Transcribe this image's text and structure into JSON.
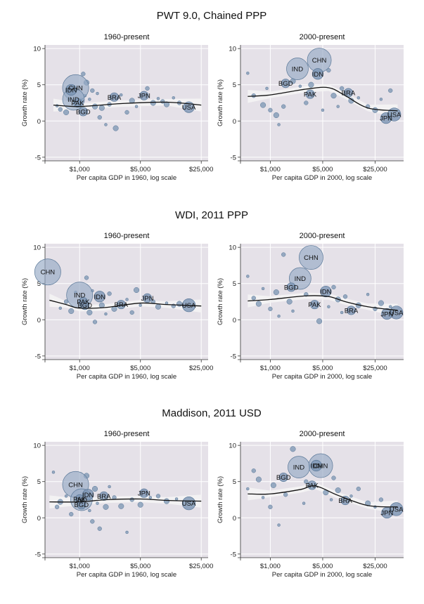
{
  "figure": {
    "row_titles": [
      "PWT 9.0, Chained PPP",
      "WDI, 2011 PPP",
      "Maddison, 2011 USD"
    ],
    "colors": {
      "plot_bg": "#e5e1e8",
      "grid": "#ffffff",
      "bubble_fill": "#7a94b3",
      "bubble_stroke": "#5a7898",
      "big_bubble_fill": "#95a9c4",
      "fit_line": "#111111",
      "ci_band": "#f4f4f4"
    }
  },
  "chart_data": [
    {
      "type": "scatter",
      "title": "1960-present",
      "group": "PWT 9.0, Chained PPP",
      "xlabel": "Per capita GDP in 1960, log scale",
      "ylabel": "Growth rate (%)",
      "x_scale": "log",
      "xlim": [
        400,
        30000
      ],
      "ylim": [
        -5.5,
        10.5
      ],
      "xticks": [
        1000,
        5000,
        25000
      ],
      "xtick_labels": [
        "$1,000",
        "$5,000",
        "$25,000"
      ],
      "yticks": [
        -5,
        0,
        5,
        10
      ],
      "ytick_labels": [
        "-5",
        "0",
        "5",
        "10"
      ],
      "labeled_points": [
        {
          "label": "CHN",
          "x": 900,
          "y": 4.6,
          "size": 12
        },
        {
          "label": "IND",
          "x": 850,
          "y": 3.0,
          "size": 10
        },
        {
          "label": "IDN",
          "x": 800,
          "y": 4.3,
          "size": 5
        },
        {
          "label": "PAK",
          "x": 950,
          "y": 2.5,
          "size": 4
        },
        {
          "label": "BGD",
          "x": 1100,
          "y": 1.3,
          "size": 4
        },
        {
          "label": "BRA",
          "x": 2500,
          "y": 3.3,
          "size": 4
        },
        {
          "label": "JPN",
          "x": 5500,
          "y": 3.5,
          "size": 4
        },
        {
          "label": "USA",
          "x": 18000,
          "y": 1.9,
          "size": 5
        }
      ],
      "other_points": [
        [
          550,
          2.1
        ],
        [
          600,
          1.6
        ],
        [
          700,
          1.2
        ],
        [
          750,
          3.0
        ],
        [
          1100,
          6.5
        ],
        [
          1200,
          5.3
        ],
        [
          1300,
          3.0
        ],
        [
          1400,
          4.2
        ],
        [
          1500,
          2.0
        ],
        [
          1600,
          3.8
        ],
        [
          1700,
          0.5
        ],
        [
          1800,
          1.8
        ],
        [
          2000,
          -0.5
        ],
        [
          2200,
          2.3
        ],
        [
          2600,
          -1.0
        ],
        [
          3000,
          3.6
        ],
        [
          3500,
          1.2
        ],
        [
          4000,
          2.8
        ],
        [
          4500,
          2.0
        ],
        [
          6000,
          4.5
        ],
        [
          7000,
          2.5
        ],
        [
          8000,
          3.1
        ],
        [
          9000,
          2.7
        ],
        [
          10000,
          2.3
        ],
        [
          12000,
          3.2
        ],
        [
          14000,
          2.5
        ],
        [
          1050,
          2.8
        ],
        [
          1150,
          3.5
        ]
      ],
      "fit": {
        "x": [
          500,
          1000,
          3000,
          10000,
          25000
        ],
        "y": [
          2.2,
          2.0,
          2.4,
          2.6,
          2.2
        ]
      }
    },
    {
      "type": "scatter",
      "title": "2000-present",
      "group": "PWT 9.0, Chained PPP",
      "xlabel": "Per capita GDP in 2000, log scale",
      "ylabel": "Growth rate (%)",
      "x_scale": "log",
      "xlim": [
        400,
        60000
      ],
      "ylim": [
        -5.5,
        10.5
      ],
      "xticks": [
        1000,
        5000,
        25000
      ],
      "xtick_labels": [
        "$1,000",
        "$5,000",
        "$25,000"
      ],
      "yticks": [
        -5,
        0,
        5,
        10
      ],
      "ytick_labels": [
        "-5",
        "0",
        "5",
        "10"
      ],
      "labeled_points": [
        {
          "label": "CHN",
          "x": 4500,
          "y": 8.4,
          "size": 11
        },
        {
          "label": "IND",
          "x": 2300,
          "y": 7.2,
          "size": 10
        },
        {
          "label": "IDN",
          "x": 4300,
          "y": 6.5,
          "size": 5
        },
        {
          "label": "BGD",
          "x": 1600,
          "y": 5.2,
          "size": 4
        },
        {
          "label": "PAK",
          "x": 3400,
          "y": 3.7,
          "size": 4
        },
        {
          "label": "BRA",
          "x": 11000,
          "y": 3.9,
          "size": 4
        },
        {
          "label": "JPN",
          "x": 35000,
          "y": 0.4,
          "size": 5
        },
        {
          "label": "USA",
          "x": 45000,
          "y": 0.9,
          "size": 6
        }
      ],
      "other_points": [
        [
          500,
          6.6
        ],
        [
          600,
          3.5
        ],
        [
          800,
          2.2
        ],
        [
          900,
          4.5
        ],
        [
          1000,
          1.5
        ],
        [
          1200,
          0.8
        ],
        [
          1300,
          -0.5
        ],
        [
          1500,
          2.0
        ],
        [
          2000,
          5.5
        ],
        [
          2500,
          4.8
        ],
        [
          3000,
          2.5
        ],
        [
          3500,
          5.0
        ],
        [
          5000,
          1.5
        ],
        [
          6000,
          7.0
        ],
        [
          7000,
          3.5
        ],
        [
          8000,
          2.0
        ],
        [
          9000,
          4.5
        ],
        [
          12000,
          2.8
        ],
        [
          15000,
          3.2
        ],
        [
          20000,
          2.0
        ],
        [
          25000,
          1.5
        ],
        [
          30000,
          3.0
        ],
        [
          40000,
          4.2
        ]
      ],
      "fit": {
        "x": [
          500,
          1000,
          3000,
          6000,
          10000,
          20000,
          50000
        ],
        "y": [
          3.4,
          3.6,
          4.4,
          4.6,
          3.5,
          1.8,
          1.4
        ]
      }
    },
    {
      "type": "scatter",
      "title": "1960-present",
      "group": "WDI, 2011 PPP",
      "xlabel": "Per capita GDP in 1960, log scale",
      "ylabel": "Growth rate (%)",
      "x_scale": "log",
      "xlim": [
        400,
        30000
      ],
      "ylim": [
        -5.5,
        10.5
      ],
      "xticks": [
        1000,
        5000,
        25000
      ],
      "xtick_labels": [
        "$1,000",
        "$5,000",
        "$25,000"
      ],
      "yticks": [
        -5,
        0,
        5,
        10
      ],
      "ytick_labels": [
        "-5",
        "0",
        "5",
        "10"
      ],
      "labeled_points": [
        {
          "label": "CHN",
          "x": 430,
          "y": 6.6,
          "size": 12
        },
        {
          "label": "IND",
          "x": 1000,
          "y": 3.4,
          "size": 12
        },
        {
          "label": "IDN",
          "x": 1700,
          "y": 3.2,
          "size": 5
        },
        {
          "label": "PAK",
          "x": 1100,
          "y": 2.5,
          "size": 4
        },
        {
          "label": "BGD",
          "x": 1150,
          "y": 2.0,
          "size": 4
        },
        {
          "label": "BRA",
          "x": 3000,
          "y": 2.1,
          "size": 4
        },
        {
          "label": "JPN",
          "x": 6000,
          "y": 3.0,
          "size": 4
        },
        {
          "label": "USA",
          "x": 18000,
          "y": 2.0,
          "size": 6
        }
      ],
      "other_points": [
        [
          600,
          1.6
        ],
        [
          700,
          2.5
        ],
        [
          800,
          1.2
        ],
        [
          900,
          3.8
        ],
        [
          1200,
          5.8
        ],
        [
          1300,
          1.0
        ],
        [
          1400,
          4.0
        ],
        [
          1500,
          -0.3
        ],
        [
          1800,
          2.0
        ],
        [
          2000,
          0.8
        ],
        [
          2200,
          3.6
        ],
        [
          2500,
          1.5
        ],
        [
          3500,
          2.8
        ],
        [
          4000,
          1.0
        ],
        [
          4500,
          4.1
        ],
        [
          5000,
          2.0
        ],
        [
          7000,
          2.5
        ],
        [
          8000,
          1.8
        ],
        [
          10000,
          2.3
        ],
        [
          12000,
          1.9
        ],
        [
          14000,
          2.2
        ]
      ],
      "fit": {
        "x": [
          450,
          700,
          1000,
          2000,
          5000,
          10000,
          25000
        ],
        "y": [
          2.7,
          2.1,
          1.6,
          1.7,
          2.3,
          2.1,
          1.9
        ]
      }
    },
    {
      "type": "scatter",
      "title": "2000-present",
      "group": "WDI, 2011 PPP",
      "xlabel": "Per capita GDP in 2000, log scale",
      "ylabel": "Growth rate (%)",
      "x_scale": "log",
      "xlim": [
        400,
        60000
      ],
      "ylim": [
        -5.5,
        10.5
      ],
      "xticks": [
        1000,
        5000,
        25000
      ],
      "xtick_labels": [
        "$1,000",
        "$5,000",
        "$25,000"
      ],
      "yticks": [
        -5,
        0,
        5,
        10
      ],
      "ytick_labels": [
        "-5",
        "0",
        "5",
        "10"
      ],
      "labeled_points": [
        {
          "label": "CHN",
          "x": 3500,
          "y": 8.6,
          "size": 11
        },
        {
          "label": "IND",
          "x": 2500,
          "y": 5.7,
          "size": 10
        },
        {
          "label": "IDN",
          "x": 5500,
          "y": 3.9,
          "size": 5
        },
        {
          "label": "BGD",
          "x": 1900,
          "y": 4.5,
          "size": 4
        },
        {
          "label": "PAK",
          "x": 3900,
          "y": 2.1,
          "size": 4
        },
        {
          "label": "BRA",
          "x": 12000,
          "y": 1.3,
          "size": 4
        },
        {
          "label": "JPN",
          "x": 36000,
          "y": 0.8,
          "size": 5
        },
        {
          "label": "USA",
          "x": 48000,
          "y": 1.0,
          "size": 6
        }
      ],
      "other_points": [
        [
          500,
          6.0
        ],
        [
          600,
          3.0
        ],
        [
          700,
          2.2
        ],
        [
          800,
          4.3
        ],
        [
          1000,
          1.5
        ],
        [
          1200,
          3.8
        ],
        [
          1300,
          0.5
        ],
        [
          1500,
          9.0
        ],
        [
          1800,
          2.5
        ],
        [
          2000,
          1.2
        ],
        [
          3000,
          3.5
        ],
        [
          4500,
          -0.2
        ],
        [
          6000,
          1.8
        ],
        [
          7000,
          4.5
        ],
        [
          8000,
          2.8
        ],
        [
          9000,
          1.0
        ],
        [
          10000,
          3.2
        ],
        [
          15000,
          2.0
        ],
        [
          20000,
          3.5
        ],
        [
          25000,
          1.5
        ],
        [
          30000,
          2.3
        ],
        [
          40000,
          1.8
        ]
      ],
      "fit": {
        "x": [
          500,
          1000,
          3000,
          6000,
          10000,
          20000,
          50000
        ],
        "y": [
          2.6,
          2.8,
          3.3,
          3.2,
          2.5,
          1.8,
          1.3
        ]
      }
    },
    {
      "type": "scatter",
      "title": "1960-present",
      "group": "Maddison, 2011 USD",
      "xlabel": "Per capita GDP in 1960, log scale",
      "ylabel": "Growth rate (%)",
      "x_scale": "log",
      "xlim": [
        400,
        30000
      ],
      "ylim": [
        -5.5,
        10.5
      ],
      "xticks": [
        1000,
        5000,
        25000
      ],
      "xtick_labels": [
        "$1,000",
        "$5,000",
        "$25,000"
      ],
      "yticks": [
        -5,
        0,
        5,
        10
      ],
      "ytick_labels": [
        "-5",
        "0",
        "5",
        "10"
      ],
      "labeled_points": [
        {
          "label": "CHN",
          "x": 900,
          "y": 4.6,
          "size": 12
        },
        {
          "label": "IND",
          "x": 1050,
          "y": 2.5,
          "size": 10
        },
        {
          "label": "IDN",
          "x": 1250,
          "y": 3.2,
          "size": 5
        },
        {
          "label": "PAK",
          "x": 1000,
          "y": 2.6,
          "size": 4
        },
        {
          "label": "BGD",
          "x": 1050,
          "y": 1.8,
          "size": 4
        },
        {
          "label": "BRA",
          "x": 1900,
          "y": 3.0,
          "size": 4
        },
        {
          "label": "JPN",
          "x": 5500,
          "y": 3.4,
          "size": 4
        },
        {
          "label": "USA",
          "x": 18000,
          "y": 2.0,
          "size": 6
        }
      ],
      "other_points": [
        [
          500,
          6.3
        ],
        [
          550,
          1.5
        ],
        [
          600,
          2.2
        ],
        [
          700,
          3.0
        ],
        [
          800,
          0.5
        ],
        [
          1200,
          5.8
        ],
        [
          1300,
          1.0
        ],
        [
          1400,
          -0.5
        ],
        [
          1500,
          4.0
        ],
        [
          1600,
          2.0
        ],
        [
          1700,
          -1.5
        ],
        [
          2000,
          1.5
        ],
        [
          2200,
          4.3
        ],
        [
          2500,
          2.8
        ],
        [
          3000,
          1.6
        ],
        [
          3500,
          -2.0
        ],
        [
          4000,
          2.5
        ],
        [
          5000,
          1.8
        ],
        [
          6500,
          2.8
        ],
        [
          8000,
          3.0
        ],
        [
          10000,
          2.3
        ],
        [
          13000,
          2.6
        ]
      ],
      "fit": {
        "x": [
          450,
          1000,
          2000,
          5000,
          10000,
          25000
        ],
        "y": [
          2.2,
          2.2,
          2.5,
          2.6,
          2.4,
          2.3
        ]
      }
    },
    {
      "type": "scatter",
      "title": "2000-present",
      "group": "Maddison, 2011 USD",
      "xlabel": "Per capita GDP in 2000, log scale",
      "ylabel": "Growth rate (%)",
      "x_scale": "log",
      "xlim": [
        400,
        60000
      ],
      "ylim": [
        -5.5,
        10.5
      ],
      "xticks": [
        1000,
        5000,
        25000
      ],
      "xtick_labels": [
        "$1,000",
        "$5,000",
        "$25,000"
      ],
      "yticks": [
        -5,
        0,
        5,
        10
      ],
      "ytick_labels": [
        "-5",
        "0",
        "5",
        "10"
      ],
      "labeled_points": [
        {
          "label": "CHN",
          "x": 4700,
          "y": 7.2,
          "size": 11
        },
        {
          "label": "IND",
          "x": 2400,
          "y": 7.0,
          "size": 10
        },
        {
          "label": "IDN",
          "x": 4100,
          "y": 7.2,
          "size": 5
        },
        {
          "label": "BGD",
          "x": 1500,
          "y": 5.6,
          "size": 4
        },
        {
          "label": "PAK",
          "x": 3600,
          "y": 4.5,
          "size": 4
        },
        {
          "label": "BRA",
          "x": 10000,
          "y": 2.4,
          "size": 4
        },
        {
          "label": "JPN",
          "x": 36000,
          "y": 0.7,
          "size": 5
        },
        {
          "label": "USA",
          "x": 48000,
          "y": 1.2,
          "size": 6
        }
      ],
      "other_points": [
        [
          500,
          4.0
        ],
        [
          600,
          6.5
        ],
        [
          700,
          5.3
        ],
        [
          800,
          2.8
        ],
        [
          1000,
          1.5
        ],
        [
          1100,
          4.5
        ],
        [
          1300,
          -1.0
        ],
        [
          1600,
          3.2
        ],
        [
          2000,
          9.5
        ],
        [
          2800,
          2.0
        ],
        [
          3000,
          5.0
        ],
        [
          5500,
          3.5
        ],
        [
          6500,
          2.5
        ],
        [
          7000,
          5.5
        ],
        [
          8000,
          3.8
        ],
        [
          12000,
          3.0
        ],
        [
          15000,
          4.0
        ],
        [
          20000,
          2.0
        ],
        [
          25000,
          1.5
        ],
        [
          30000,
          2.5
        ]
      ],
      "fit": {
        "x": [
          500,
          1000,
          2500,
          4000,
          8000,
          20000,
          50000
        ],
        "y": [
          3.3,
          3.3,
          3.9,
          4.4,
          3.1,
          1.7,
          1.5
        ]
      }
    }
  ]
}
